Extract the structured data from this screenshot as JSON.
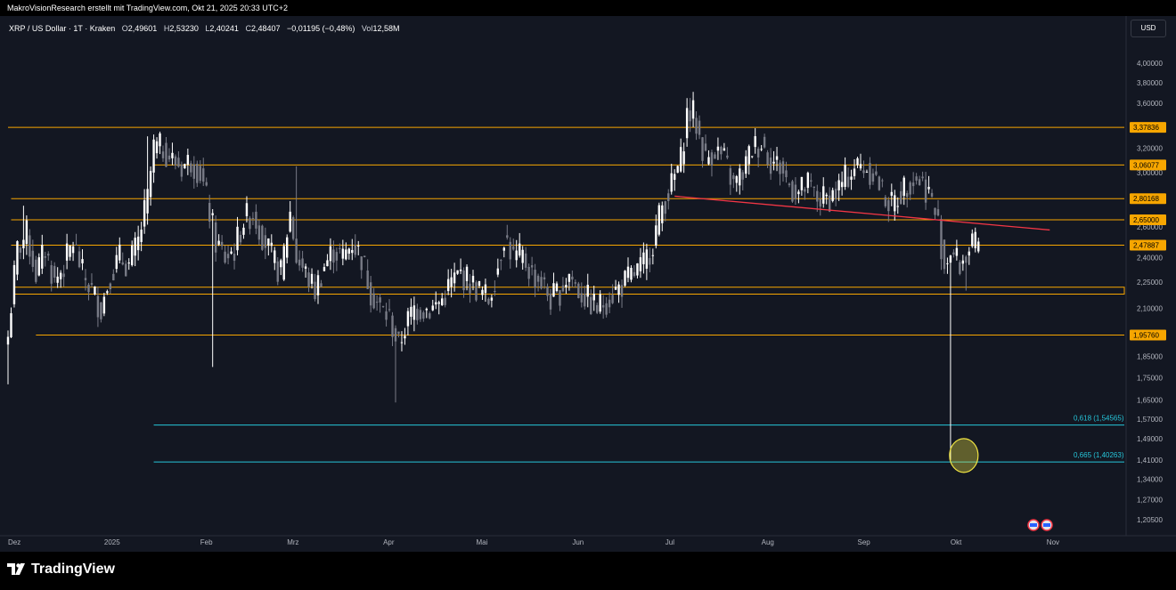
{
  "header": {
    "credit": "MakroVisionResearch erstellt mit TradingView.com, Okt 21, 2025 20:33 UTC+2"
  },
  "legend": {
    "symbol": "XRP / US Dollar · 1T · Kraken",
    "o_label": "O",
    "o_value": "2,49601",
    "h_label": "H",
    "h_value": "2,53230",
    "l_label": "L",
    "l_value": "2,40241",
    "c_label": "C",
    "c_value": "2,48407",
    "change": "−0,01195 (−0,48%)",
    "vol_label": "Vol",
    "vol_value": "12,58M"
  },
  "toolbar": {
    "currency": "USD"
  },
  "footer": {
    "brand": "TradingView"
  },
  "colors": {
    "background": "#131722",
    "up": "#ffffff",
    "down": "#787b86",
    "level": "#f7a600",
    "trendline": "#f23645",
    "fib": "#26c6da",
    "highlight": "#f0e442"
  },
  "chart_data": {
    "type": "candlestick",
    "y_scale": "log",
    "ylim": [
      1.18,
      4.25
    ],
    "price_ticks": [
      "4,00000",
      "3,80000",
      "3,60000",
      "3,20000",
      "3,00000",
      "2,60000",
      "2,40000",
      "2,25000",
      "2,10000",
      "1,85000",
      "1,75000",
      "1,65000",
      "1,57000",
      "1,49000",
      "1,41000",
      "1,34000",
      "1,27000",
      "1,20500"
    ],
    "price_tick_values": [
      4.0,
      3.8,
      3.6,
      3.2,
      3.0,
      2.6,
      2.4,
      2.25,
      2.1,
      1.85,
      1.75,
      1.65,
      1.57,
      1.49,
      1.41,
      1.34,
      1.27,
      1.205
    ],
    "x_labels": [
      "Dez",
      "2025",
      "Feb",
      "Mrz",
      "Apr",
      "Mai",
      "Jun",
      "Jul",
      "Aug",
      "Sep",
      "Okt",
      "Nov"
    ],
    "x_label_days": [
      0,
      31,
      62,
      90,
      121,
      151,
      182,
      212,
      243,
      274,
      304,
      335
    ],
    "horizontal_levels": [
      {
        "label": "3,37836",
        "value": 3.37836,
        "from_day": 0
      },
      {
        "label": "3,06077",
        "value": 3.06077,
        "from_day": 47
      },
      {
        "label": "2,80168",
        "value": 2.80168,
        "from_day": 1
      },
      {
        "label": "2,65000",
        "value": 2.65,
        "from_day": 1
      },
      {
        "label": "2,47887",
        "value": 2.47887,
        "from_day": 1
      },
      {
        "label": "1,95760",
        "value": 1.9576,
        "from_day": 9
      }
    ],
    "support_zone": {
      "low": 2.18,
      "high": 2.22,
      "from_day": 1
    },
    "fib_levels": [
      {
        "label": "0,618 (1,54565)",
        "value": 1.54565,
        "from_day": 47
      },
      {
        "label": "0,665 (1,40263)",
        "value": 1.40263,
        "from_day": 47
      }
    ],
    "trendline": {
      "start_day": 215,
      "start_value": 2.82,
      "end_day": 336,
      "end_value": 2.58
    },
    "highlight": {
      "day": 308,
      "value": 1.41
    },
    "keyframes": [
      [
        0,
        1.95
      ],
      [
        3,
        2.45
      ],
      [
        6,
        2.55
      ],
      [
        9,
        2.3
      ],
      [
        12,
        2.45
      ],
      [
        15,
        2.25
      ],
      [
        18,
        2.35
      ],
      [
        21,
        2.5
      ],
      [
        24,
        2.3
      ],
      [
        27,
        2.2
      ],
      [
        30,
        2.1
      ],
      [
        33,
        2.3
      ],
      [
        36,
        2.4
      ],
      [
        39,
        2.35
      ],
      [
        42,
        2.5
      ],
      [
        45,
        2.8
      ],
      [
        47,
        3.2
      ],
      [
        50,
        3.2
      ],
      [
        53,
        3.1
      ],
      [
        56,
        3.05
      ],
      [
        59,
        3.1
      ],
      [
        62,
        3.0
      ],
      [
        64,
        2.8
      ],
      [
        67,
        2.5
      ],
      [
        70,
        2.4
      ],
      [
        73,
        2.45
      ],
      [
        76,
        2.65
      ],
      [
        79,
        2.7
      ],
      [
        82,
        2.55
      ],
      [
        85,
        2.4
      ],
      [
        88,
        2.3
      ],
      [
        91,
        2.7
      ],
      [
        93,
        2.4
      ],
      [
        96,
        2.3
      ],
      [
        99,
        2.2
      ],
      [
        102,
        2.35
      ],
      [
        105,
        2.45
      ],
      [
        108,
        2.4
      ],
      [
        111,
        2.5
      ],
      [
        114,
        2.4
      ],
      [
        117,
        2.2
      ],
      [
        120,
        2.1
      ],
      [
        123,
        2.05
      ],
      [
        126,
        1.9
      ],
      [
        128,
        2.0
      ],
      [
        131,
        2.1
      ],
      [
        134,
        2.1
      ],
      [
        137,
        2.1
      ],
      [
        140,
        2.15
      ],
      [
        143,
        2.25
      ],
      [
        146,
        2.3
      ],
      [
        149,
        2.25
      ],
      [
        152,
        2.2
      ],
      [
        155,
        2.15
      ],
      [
        158,
        2.35
      ],
      [
        160,
        2.55
      ],
      [
        163,
        2.4
      ],
      [
        166,
        2.4
      ],
      [
        169,
        2.3
      ],
      [
        172,
        2.25
      ],
      [
        175,
        2.15
      ],
      [
        178,
        2.2
      ],
      [
        181,
        2.3
      ],
      [
        184,
        2.2
      ],
      [
        187,
        2.15
      ],
      [
        190,
        2.1
      ],
      [
        193,
        2.15
      ],
      [
        196,
        2.2
      ],
      [
        199,
        2.25
      ],
      [
        202,
        2.3
      ],
      [
        205,
        2.35
      ],
      [
        208,
        2.5
      ],
      [
        211,
        2.75
      ],
      [
        214,
        2.9
      ],
      [
        217,
        3.1
      ],
      [
        219,
        3.5
      ],
      [
        221,
        3.5
      ],
      [
        223,
        3.3
      ],
      [
        225,
        3.1
      ],
      [
        228,
        3.2
      ],
      [
        231,
        3.1
      ],
      [
        234,
        2.9
      ],
      [
        237,
        3.0
      ],
      [
        240,
        3.2
      ],
      [
        243,
        3.25
      ],
      [
        246,
        3.1
      ],
      [
        249,
        3.05
      ],
      [
        252,
        2.9
      ],
      [
        255,
        2.85
      ],
      [
        258,
        2.9
      ],
      [
        261,
        2.8
      ],
      [
        264,
        2.8
      ],
      [
        267,
        2.85
      ],
      [
        270,
        2.95
      ],
      [
        273,
        3.05
      ],
      [
        276,
        3.05
      ],
      [
        279,
        3.0
      ],
      [
        282,
        2.85
      ],
      [
        285,
        2.75
      ],
      [
        288,
        2.85
      ],
      [
        291,
        2.95
      ],
      [
        294,
        2.95
      ],
      [
        297,
        2.85
      ],
      [
        300,
        2.62
      ],
      [
        302,
        2.35
      ],
      [
        304,
        2.45
      ],
      [
        307,
        2.35
      ],
      [
        310,
        2.45
      ],
      [
        313,
        2.48
      ]
    ],
    "wicks": [
      {
        "day": 0,
        "low": 1.72
      },
      {
        "day": 5,
        "high": 2.75
      },
      {
        "day": 45,
        "high": 3.3
      },
      {
        "day": 66,
        "low": 1.8
      },
      {
        "day": 93,
        "high": 3.05
      },
      {
        "day": 125,
        "low": 1.64
      },
      {
        "day": 220,
        "high": 3.65
      },
      {
        "day": 304,
        "low": 1.41
      },
      {
        "day": 309,
        "low": 2.2
      }
    ]
  }
}
